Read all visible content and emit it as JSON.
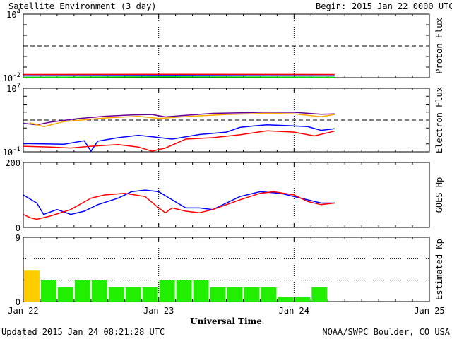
{
  "header": {
    "title": "Satellite Environment (3 day)",
    "begin_label": "Begin:",
    "begin_value": "2015 Jan 22 0000 UTC"
  },
  "footer": {
    "updated": "Updated 2015 Jan 24 08:21:28 UTC",
    "credit": "NOAA/SWPC Boulder, CO USA"
  },
  "colors": {
    "red": "#ff0000",
    "blue": "#0000ff",
    "green": "#00dd00",
    "purple": "#660099",
    "orange": "#ffaa00",
    "kp_green": "#22ee00",
    "kp_yellow": "#ffcc00"
  },
  "chart_data": [
    {
      "id": "proton",
      "type": "line",
      "ylabel": "Proton Flux",
      "scale": "log",
      "ylim": [
        0.01,
        10000
      ],
      "ytick_labels": [
        {
          "base": "10",
          "exp": "4",
          "value": 10000
        },
        {
          "base": "10",
          "exp": "-2",
          "value": 0.01
        }
      ],
      "threshold": 10,
      "series": [
        {
          "color": "red",
          "points": [
            [
              0,
              0.02
            ],
            [
              1.1,
              0.021
            ],
            [
              2.3,
              0.02
            ]
          ]
        },
        {
          "color": "blue",
          "points": [
            [
              0,
              0.015
            ],
            [
              1.1,
              0.016
            ],
            [
              2.3,
              0.015
            ]
          ]
        },
        {
          "color": "green",
          "points": [
            [
              0,
              0.011
            ],
            [
              1.1,
              0.012
            ],
            [
              2.3,
              0.011
            ]
          ]
        }
      ]
    },
    {
      "id": "electron",
      "type": "line",
      "ylabel": "Electron Flux",
      "scale": "log",
      "ylim": [
        0.1,
        10000000
      ],
      "ytick_labels": [
        {
          "base": "10",
          "exp": "7",
          "value": 10000000
        },
        {
          "base": "10",
          "exp": "-1",
          "value": 0.1
        }
      ],
      "threshold": 1000,
      "series": [
        {
          "color": "purple",
          "points": [
            [
              0,
              400
            ],
            [
              0.1,
              250
            ],
            [
              0.2,
              550
            ],
            [
              0.4,
              1500
            ],
            [
              0.6,
              3000
            ],
            [
              0.8,
              4500
            ],
            [
              0.95,
              5000
            ],
            [
              1.05,
              2500
            ],
            [
              1.2,
              4000
            ],
            [
              1.4,
              7000
            ],
            [
              1.6,
              8000
            ],
            [
              1.8,
              10000
            ],
            [
              2.0,
              9500
            ],
            [
              2.2,
              5500
            ],
            [
              2.3,
              6000
            ]
          ]
        },
        {
          "color": "orange",
          "points": [
            [
              0.05,
              450
            ],
            [
              0.15,
              150
            ],
            [
              0.3,
              650
            ],
            [
              0.6,
              1800
            ],
            [
              0.85,
              3000
            ],
            [
              1.0,
              1600
            ],
            [
              1.2,
              2800
            ],
            [
              1.5,
              5000
            ],
            [
              1.8,
              7000
            ],
            [
              2.0,
              6000
            ],
            [
              2.2,
              2600
            ],
            [
              2.3,
              5000
            ]
          ]
        },
        {
          "color": "blue",
          "points": [
            [
              0,
              1.1
            ],
            [
              0.3,
              0.9
            ],
            [
              0.45,
              2.5
            ],
            [
              0.5,
              0.12
            ],
            [
              0.55,
              2.2
            ],
            [
              0.7,
              6
            ],
            [
              0.85,
              12
            ],
            [
              0.95,
              8
            ],
            [
              1.1,
              4
            ],
            [
              1.3,
              15
            ],
            [
              1.5,
              30
            ],
            [
              1.6,
              120
            ],
            [
              1.7,
              180
            ],
            [
              1.8,
              250
            ],
            [
              1.95,
              200
            ],
            [
              2.1,
              150
            ],
            [
              2.2,
              50
            ],
            [
              2.3,
              80
            ]
          ]
        },
        {
          "color": "red",
          "points": [
            [
              0,
              0.5
            ],
            [
              0.2,
              0.4
            ],
            [
              0.35,
              0.3
            ],
            [
              0.5,
              0.5
            ],
            [
              0.7,
              0.8
            ],
            [
              0.85,
              0.4
            ],
            [
              0.95,
              0.12
            ],
            [
              1.05,
              0.3
            ],
            [
              1.2,
              4
            ],
            [
              1.4,
              6
            ],
            [
              1.6,
              14
            ],
            [
              1.8,
              45
            ],
            [
              2.0,
              30
            ],
            [
              2.15,
              10
            ],
            [
              2.3,
              40
            ]
          ]
        }
      ]
    },
    {
      "id": "goes_hp",
      "type": "line",
      "ylabel": "GOES Hp",
      "scale": "linear",
      "ylim": [
        0,
        200
      ],
      "ytick_labels": [
        {
          "base": "200",
          "value": 200
        },
        {
          "base": "0",
          "value": 0
        }
      ],
      "series": [
        {
          "color": "blue",
          "points": [
            [
              0,
              100
            ],
            [
              0.1,
              75
            ],
            [
              0.15,
              40
            ],
            [
              0.25,
              55
            ],
            [
              0.35,
              40
            ],
            [
              0.45,
              50
            ],
            [
              0.55,
              70
            ],
            [
              0.7,
              90
            ],
            [
              0.8,
              110
            ],
            [
              0.9,
              115
            ],
            [
              1.0,
              110
            ],
            [
              1.1,
              85
            ],
            [
              1.2,
              60
            ],
            [
              1.3,
              60
            ],
            [
              1.4,
              55
            ],
            [
              1.5,
              75
            ],
            [
              1.6,
              95
            ],
            [
              1.75,
              110
            ],
            [
              1.9,
              105
            ],
            [
              2.0,
              95
            ],
            [
              2.1,
              85
            ],
            [
              2.2,
              75
            ],
            [
              2.3,
              75
            ]
          ]
        },
        {
          "color": "red",
          "points": [
            [
              0,
              40
            ],
            [
              0.05,
              30
            ],
            [
              0.1,
              25
            ],
            [
              0.2,
              35
            ],
            [
              0.35,
              55
            ],
            [
              0.5,
              90
            ],
            [
              0.6,
              100
            ],
            [
              0.75,
              105
            ],
            [
              0.9,
              95
            ],
            [
              1.0,
              60
            ],
            [
              1.05,
              45
            ],
            [
              1.1,
              60
            ],
            [
              1.2,
              50
            ],
            [
              1.3,
              45
            ],
            [
              1.4,
              55
            ],
            [
              1.5,
              70
            ],
            [
              1.6,
              85
            ],
            [
              1.75,
              105
            ],
            [
              1.85,
              110
            ],
            [
              2.0,
              100
            ],
            [
              2.1,
              80
            ],
            [
              2.2,
              70
            ],
            [
              2.3,
              75
            ]
          ]
        }
      ]
    },
    {
      "id": "kp",
      "type": "bar",
      "ylabel": "Estimated Kp",
      "scale": "linear",
      "ylim": [
        0,
        9
      ],
      "ytick_labels": [
        {
          "base": "9",
          "value": 9
        },
        {
          "base": "0",
          "value": 0
        }
      ],
      "x_start": [
        0,
        0.125,
        0.25,
        0.375,
        0.5,
        0.625,
        0.75,
        0.875,
        1.0,
        1.125,
        1.25,
        1.375,
        1.5,
        1.625,
        1.75,
        1.875,
        2.0,
        2.125,
        2.25
      ],
      "values": [
        4.33,
        3,
        2,
        3,
        3,
        2,
        2,
        2,
        3,
        3,
        3,
        2,
        2,
        2,
        2,
        0.67,
        0.67,
        2,
        0
      ],
      "bar_colors": [
        "yellow",
        "green",
        "green",
        "green",
        "green",
        "green",
        "green",
        "green",
        "green",
        "green",
        "green",
        "green",
        "green",
        "green",
        "green",
        "green",
        "green",
        "green",
        "green"
      ]
    }
  ],
  "xaxis": {
    "title": "Universal Time",
    "range": [
      0,
      3
    ],
    "ticks": [
      {
        "label": "Jan 22",
        "value": 0
      },
      {
        "label": "Jan 23",
        "value": 1
      },
      {
        "label": "Jan 24",
        "value": 2
      },
      {
        "label": "Jan 25",
        "value": 3
      }
    ]
  }
}
